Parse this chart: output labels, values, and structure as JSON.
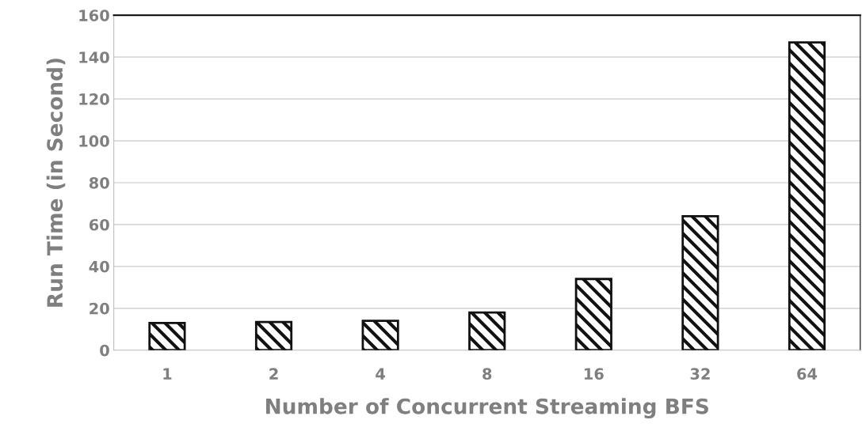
{
  "chart_data": {
    "type": "bar",
    "xlabel": "Number of Concurrent Streaming BFS",
    "ylabel": "Run Time (in Second)",
    "categories": [
      "1",
      "2",
      "4",
      "8",
      "16",
      "32",
      "64"
    ],
    "values": [
      13,
      13.5,
      14,
      18,
      34,
      64,
      147
    ],
    "color": "#111111",
    "ylim": [
      0,
      160
    ],
    "yticks": [
      0,
      20,
      40,
      60,
      80,
      100,
      120,
      140,
      160
    ],
    "grid": "y"
  }
}
